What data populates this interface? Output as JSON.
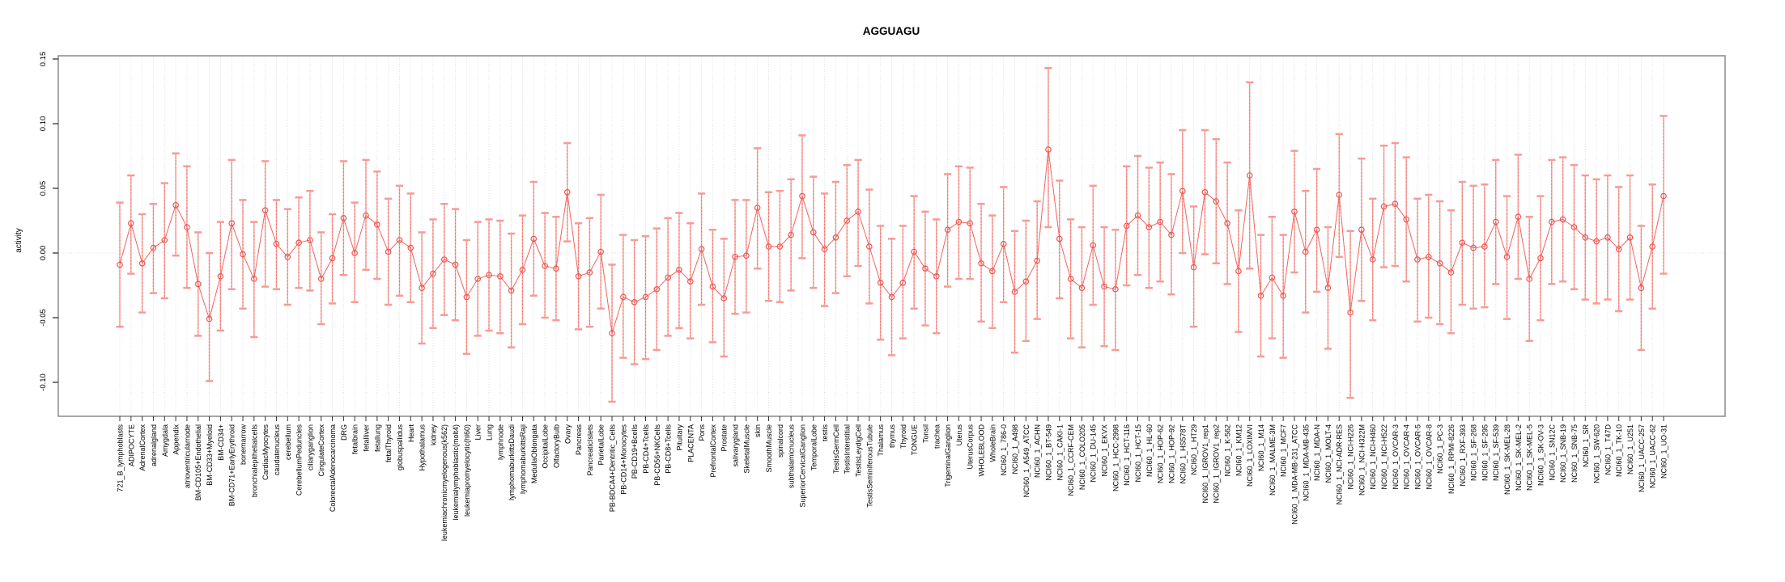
{
  "title": "AGGUAGU",
  "y_axis": {
    "label": "activity",
    "tick_labels": [
      "-0.10",
      "-0.05",
      "0.00",
      "0.05",
      "0.10",
      "0.15"
    ],
    "tick_values": [
      -0.1,
      -0.05,
      0.0,
      0.05,
      0.1,
      0.15
    ]
  },
  "colors": {
    "series_line": "#f2625d",
    "point_stroke": "#ef544f",
    "error_bar": "#f7a39d",
    "error_cap": "#f79b95",
    "error_dash": "#ee6a64",
    "gridline": "#dcdcdc",
    "zero_line": "#d9d9d9",
    "axis_box": "#8a8a8a",
    "tick": "#333333",
    "label_text": "#000000"
  },
  "chart_data": {
    "type": "line",
    "title": "AGGUAGU",
    "xlabel": "",
    "ylabel": "activity",
    "ylim": [
      -0.127,
      0.157
    ],
    "yticks": [
      -0.1,
      -0.05,
      0.0,
      0.05,
      0.1,
      0.15
    ],
    "grid": "vertical dotted gridline at every category; horizontal dotted line at y=0",
    "legend_position": "none",
    "point_marker": "open-circle",
    "error_bars": true,
    "categories": [
      "721_B_lymphoblasts",
      "ADIPOCYTE",
      "AdrenalCortex",
      "adrenalgland",
      "Amygdala",
      "Appendix",
      "atrioventricularnode",
      "BM-CD105+Endothelial",
      "BM-CD33+Myeloid",
      "BM-CD34+",
      "BM-CD71+EarlyErythroid",
      "bonemarrow",
      "bronchialepithelialcells",
      "CardiacMyocytes",
      "caudatenucleus",
      "cerebellum",
      "CerebellumPeduncles",
      "ciliaryganglion",
      "CingulateCortex",
      "ColorectalAdenocarcinoma",
      "DRG",
      "fetalbrain",
      "fetalliver",
      "fetallung",
      "fetalThyroid",
      "globuspallidus",
      "Heart",
      "Hypothalamus",
      "kidney",
      "leukemiachronicmyelogenous(k562)",
      "leukemialymphoblastic(molt4)",
      "leukemiapromyelocytic(hl60)",
      "Liver",
      "Lung",
      "lymphnode",
      "lymphomaburkittsDaudi",
      "lymphomaburkittsRaji",
      "MedullaOblongata",
      "OccipitalLobe",
      "OlfactoryBulb",
      "Ovary",
      "Pancreas",
      "PancreaticIslets",
      "ParietalLobe",
      "PB-BDCA4+Dentritic_Cells",
      "PB-CD14+Monocytes",
      "PB-CD19+Bcells",
      "PB-CD4+Tcells",
      "PB-CD56+NKCells",
      "PB-CD8+Tcells",
      "Pituitary",
      "PLACENTA",
      "Pons",
      "PrefrontalCortex",
      "Prostate",
      "salivarygland",
      "SkeletalMuscle",
      "skin",
      "SmoothMuscle",
      "spinalcord",
      "subthalamicnucleus",
      "SuperiorCervicalGanglion",
      "TemporalLobe",
      "testis",
      "TestisGermCell",
      "TestisInterstitial",
      "TestisLeydigCell",
      "TestisSeminiferousTubule",
      "Thalamus",
      "thymus",
      "Thyroid",
      "TONGUE",
      "Tonsil",
      "trachea",
      "TrigeminalGanglion",
      "Uterus",
      "UterusCorpus",
      "WHOLEBLOOD",
      "WholeBrain",
      "NCI60_1_786-0",
      "NCI60_1_A498",
      "NCI60_1_A549_ATCC",
      "NCI60_1_ACHN",
      "NCI60_1_BT-549",
      "NCI60_1_CAKI-1",
      "NCI60_1_CCRF-CEM",
      "NCI60_1_COLO205",
      "NCI60_1_DU-145",
      "NCI60_1_EKVX",
      "NCI60_1_HCC-2998",
      "NCI60_1_HCT-116",
      "NCI60_1_HCT-15",
      "NCI60_1_HL-60",
      "NCI60_1_HOP-62",
      "NCI60_1_HOP-92",
      "NCI60_1_HS578T",
      "NCI60_1_HT29",
      "NCI60_1_IGROV1_rep1",
      "NCI60_1_IGROV1_rep2",
      "NCI60_1_K-562",
      "NCI60_1_KM12",
      "NCI60_1_LOXIMVI",
      "NCI60_1_M14",
      "NCI60_1_MALME-3M",
      "NCI60_1_MCF7",
      "NCI60_1_MDA-MB-231_ATCC",
      "NCI60_1_MDA-MB-435",
      "NCI60_1_MDA-N",
      "NCI60_1_MOLT-4",
      "NCI60_1_NCI-ADR-RES",
      "NCI60_1_NCI-H226",
      "NCI60_1_NCI-H322M",
      "NCI60_1_NCI-H460",
      "NCI60_1_NCI-H522",
      "NCI60_1_OVCAR-3",
      "NCI60_1_OVCAR-4",
      "NCI60_1_OVCAR-5",
      "NCI60_1_OVCAR-8",
      "NCI60_1_PC-3",
      "NCI60_1_RPMI-8226",
      "NCI60_1_RXF-393",
      "NCI60_1_SF-268",
      "NCI60_1_SF-295",
      "NCI60_1_SF-539",
      "NCI60_1_SK-MEL-28",
      "NCI60_1_SK-MEL-2",
      "NCI60_1_SK-MEL-5",
      "NCI60_1_SK-OV-3",
      "NCI60_1_SN12C",
      "NCI60_1_SNB-19",
      "NCI60_1_SNB-75",
      "NCI60_1_SR",
      "NCI60_1_SW-620",
      "NCI60_1_T47D",
      "NCI60_1_TK-10",
      "NCI60_1_U251",
      "NCI60_1_UACC-257",
      "NCI60_1_UACC-62",
      "NCI60_1_UO-31"
    ],
    "series": [
      {
        "name": "activity",
        "values": [
          -0.009,
          0.023,
          -0.008,
          0.004,
          0.01,
          0.037,
          0.02,
          -0.024,
          -0.051,
          -0.018,
          0.023,
          -0.001,
          -0.02,
          0.033,
          0.007,
          -0.003,
          0.008,
          0.01,
          -0.02,
          -0.004,
          0.027,
          0.0,
          0.029,
          0.022,
          0.001,
          0.01,
          0.004,
          -0.027,
          -0.016,
          -0.005,
          -0.009,
          -0.034,
          -0.02,
          -0.017,
          -0.018,
          -0.029,
          -0.013,
          0.011,
          -0.01,
          -0.012,
          0.047,
          -0.018,
          -0.015,
          0.001,
          -0.062,
          -0.034,
          -0.038,
          -0.034,
          -0.028,
          -0.019,
          -0.013,
          -0.022,
          0.003,
          -0.026,
          -0.035,
          -0.003,
          -0.002,
          0.035,
          0.005,
          0.005,
          0.014,
          0.044,
          0.016,
          0.003,
          0.012,
          0.025,
          0.032,
          0.005,
          -0.023,
          -0.034,
          -0.023,
          0.001,
          -0.012,
          -0.018,
          0.018,
          0.024,
          0.023,
          -0.008,
          -0.014,
          0.007,
          -0.03,
          -0.022,
          -0.006,
          0.08,
          0.011,
          -0.02,
          -0.027,
          0.006,
          -0.026,
          -0.028,
          0.021,
          0.029,
          0.02,
          0.024,
          0.014,
          0.048,
          -0.011,
          0.047,
          0.04,
          0.023,
          -0.014,
          0.06,
          -0.033,
          -0.019,
          -0.033,
          0.032,
          0.001,
          0.018,
          -0.027,
          0.045,
          -0.046,
          0.018,
          -0.005,
          0.036,
          0.038,
          0.026,
          -0.005,
          -0.003,
          -0.008,
          -0.015,
          0.008,
          0.004,
          0.005,
          0.024,
          -0.003,
          0.028,
          -0.02,
          -0.004,
          0.024,
          0.026,
          0.02,
          0.012,
          0.009,
          0.012,
          0.003,
          0.012,
          -0.027,
          0.005,
          0.044
        ],
        "error_low": [
          -0.057,
          -0.016,
          -0.046,
          -0.031,
          -0.035,
          -0.002,
          -0.027,
          -0.064,
          -0.099,
          -0.06,
          -0.028,
          -0.043,
          -0.065,
          -0.026,
          -0.028,
          -0.04,
          -0.027,
          -0.029,
          -0.055,
          -0.039,
          -0.017,
          -0.038,
          -0.013,
          -0.02,
          -0.04,
          -0.033,
          -0.038,
          -0.07,
          -0.058,
          -0.048,
          -0.052,
          -0.078,
          -0.064,
          -0.06,
          -0.062,
          -0.073,
          -0.055,
          -0.033,
          -0.05,
          -0.052,
          0.009,
          -0.059,
          -0.057,
          -0.043,
          -0.115,
          -0.081,
          -0.086,
          -0.082,
          -0.075,
          -0.064,
          -0.058,
          -0.066,
          -0.04,
          -0.069,
          -0.08,
          -0.047,
          -0.046,
          -0.012,
          -0.037,
          -0.038,
          -0.029,
          -0.004,
          -0.027,
          -0.041,
          -0.031,
          -0.018,
          -0.01,
          -0.039,
          -0.067,
          -0.079,
          -0.066,
          -0.043,
          -0.056,
          -0.062,
          -0.026,
          -0.02,
          -0.02,
          -0.053,
          -0.058,
          -0.038,
          -0.077,
          -0.068,
          -0.051,
          0.02,
          -0.035,
          -0.066,
          -0.073,
          -0.04,
          -0.072,
          -0.075,
          -0.025,
          -0.017,
          -0.027,
          -0.022,
          -0.032,
          0.0,
          -0.057,
          -0.001,
          -0.008,
          -0.024,
          -0.061,
          -0.012,
          -0.08,
          -0.066,
          -0.081,
          -0.015,
          -0.046,
          -0.03,
          -0.074,
          -0.003,
          -0.112,
          -0.037,
          -0.052,
          -0.011,
          -0.01,
          -0.022,
          -0.053,
          -0.05,
          -0.055,
          -0.062,
          -0.04,
          -0.043,
          -0.042,
          -0.024,
          -0.051,
          -0.02,
          -0.068,
          -0.052,
          -0.024,
          -0.022,
          -0.028,
          -0.036,
          -0.039,
          -0.036,
          -0.045,
          -0.036,
          -0.075,
          -0.043,
          -0.016
        ],
        "error_high": [
          0.039,
          0.06,
          0.03,
          0.038,
          0.054,
          0.077,
          0.067,
          0.016,
          0.0,
          0.024,
          0.072,
          0.041,
          0.024,
          0.071,
          0.041,
          0.034,
          0.043,
          0.048,
          0.016,
          0.03,
          0.071,
          0.039,
          0.072,
          0.063,
          0.042,
          0.052,
          0.046,
          0.016,
          0.026,
          0.038,
          0.034,
          0.01,
          0.024,
          0.026,
          0.025,
          0.015,
          0.029,
          0.055,
          0.031,
          0.028,
          0.085,
          0.023,
          0.027,
          0.045,
          -0.009,
          0.014,
          0.01,
          0.013,
          0.019,
          0.027,
          0.031,
          0.023,
          0.046,
          0.018,
          0.011,
          0.041,
          0.041,
          0.081,
          0.047,
          0.048,
          0.057,
          0.091,
          0.059,
          0.046,
          0.055,
          0.068,
          0.072,
          0.049,
          0.021,
          0.011,
          0.021,
          0.044,
          0.032,
          0.026,
          0.061,
          0.067,
          0.066,
          0.038,
          0.029,
          0.051,
          0.017,
          0.025,
          0.04,
          0.143,
          0.056,
          0.026,
          0.02,
          0.052,
          0.02,
          0.018,
          0.067,
          0.075,
          0.066,
          0.07,
          0.061,
          0.095,
          0.036,
          0.095,
          0.088,
          0.07,
          0.033,
          0.132,
          0.014,
          0.028,
          0.014,
          0.079,
          0.048,
          0.065,
          0.02,
          0.092,
          0.017,
          0.073,
          0.042,
          0.083,
          0.085,
          0.074,
          0.042,
          0.045,
          0.04,
          0.033,
          0.055,
          0.052,
          0.053,
          0.072,
          0.044,
          0.076,
          0.028,
          0.044,
          0.072,
          0.074,
          0.068,
          0.06,
          0.057,
          0.06,
          0.051,
          0.06,
          0.021,
          0.053,
          0.106
        ]
      }
    ]
  }
}
